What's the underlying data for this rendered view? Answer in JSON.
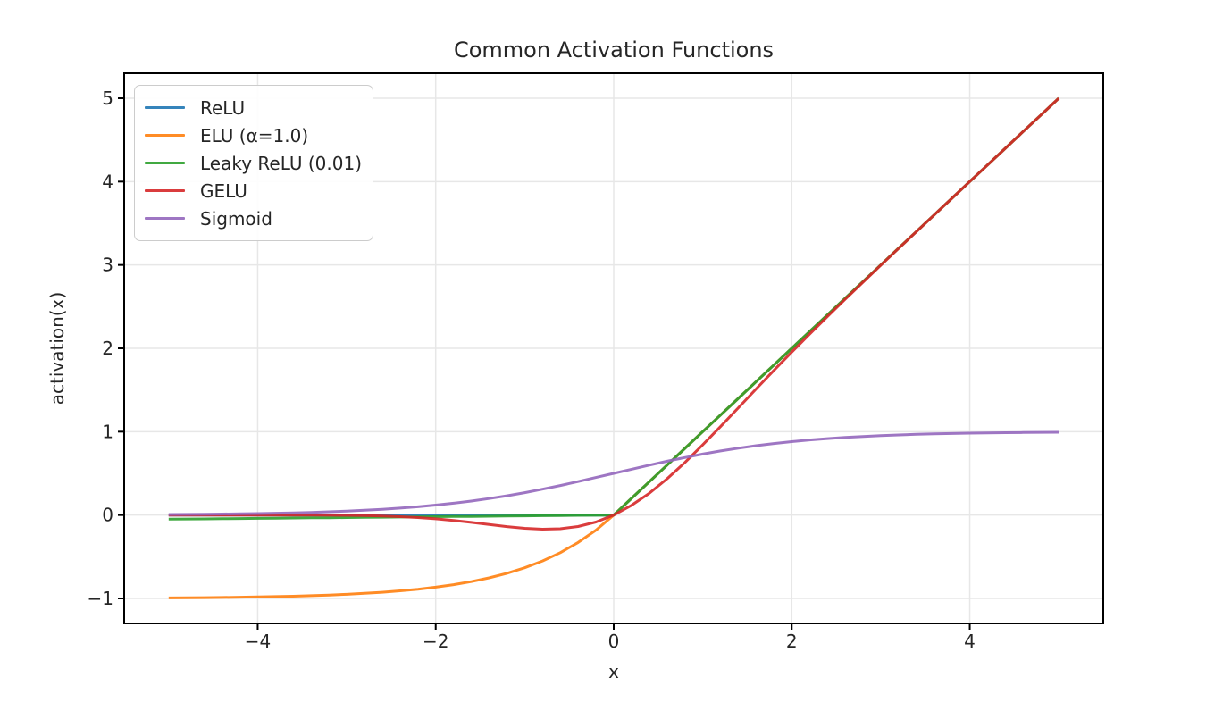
{
  "figure": {
    "background": "#ffffff",
    "text_color": "#262626",
    "spine_color": "#000000",
    "grid_color": "#e7e7e7",
    "legend_border_color": "#cccccc"
  },
  "chart_data": {
    "type": "line",
    "title": "Common Activation Functions",
    "xlabel": "x",
    "ylabel": "activation(x)",
    "xlim": [
      -5.5,
      5.5
    ],
    "ylim": [
      -1.3,
      5.3
    ],
    "grid": true,
    "legend_position": "upper left",
    "line_width": 3,
    "line_alpha": 0.9,
    "xticks": [
      {
        "v": -4,
        "label": "−4"
      },
      {
        "v": -2,
        "label": "−2"
      },
      {
        "v": 0,
        "label": "0"
      },
      {
        "v": 2,
        "label": "2"
      },
      {
        "v": 4,
        "label": "4"
      }
    ],
    "yticks": [
      {
        "v": -1,
        "label": "−1"
      },
      {
        "v": 0,
        "label": "0"
      },
      {
        "v": 1,
        "label": "1"
      },
      {
        "v": 2,
        "label": "2"
      },
      {
        "v": 3,
        "label": "3"
      },
      {
        "v": 4,
        "label": "4"
      },
      {
        "v": 5,
        "label": "5"
      }
    ],
    "x": [
      -5,
      -4.8,
      -4.6,
      -4.4,
      -4.2,
      -4,
      -3.8,
      -3.6,
      -3.4,
      -3.2,
      -3,
      -2.8,
      -2.6,
      -2.4,
      -2.2,
      -2,
      -1.8,
      -1.6,
      -1.4,
      -1.2,
      -1,
      -0.8,
      -0.6,
      -0.4,
      -0.2,
      0,
      0.2,
      0.4,
      0.6,
      0.8,
      1,
      1.2,
      1.4,
      1.6,
      1.8,
      2,
      2.2,
      2.4,
      2.6,
      2.8,
      3,
      3.2,
      3.4,
      3.6,
      3.8,
      4,
      4.2,
      4.4,
      4.6,
      4.8,
      5
    ],
    "series": [
      {
        "name": "ReLU",
        "color": "#1f77b4",
        "values": [
          0,
          0,
          0,
          0,
          0,
          0,
          0,
          0,
          0,
          0,
          0,
          0,
          0,
          0,
          0,
          0,
          0,
          0,
          0,
          0,
          0,
          0,
          0,
          0,
          0,
          0,
          0.2,
          0.4,
          0.6,
          0.8,
          1,
          1.2,
          1.4,
          1.6,
          1.8,
          2,
          2.2,
          2.4,
          2.6,
          2.8,
          3,
          3.2,
          3.4,
          3.6,
          3.8,
          4,
          4.2,
          4.4,
          4.6,
          4.8,
          5
        ]
      },
      {
        "name": "ELU (α=1.0)",
        "color": "#ff7f0e",
        "values": [
          -0.9933,
          -0.9918,
          -0.9899,
          -0.9877,
          -0.985,
          -0.9817,
          -0.9776,
          -0.9727,
          -0.9666,
          -0.9592,
          -0.9502,
          -0.9392,
          -0.9257,
          -0.9093,
          -0.8892,
          -0.8647,
          -0.8347,
          -0.7981,
          -0.7534,
          -0.6988,
          -0.6321,
          -0.5507,
          -0.4512,
          -0.3297,
          -0.1813,
          0,
          0.2,
          0.4,
          0.6,
          0.8,
          1,
          1.2,
          1.4,
          1.6,
          1.8,
          2,
          2.2,
          2.4,
          2.6,
          2.8,
          3,
          3.2,
          3.4,
          3.6,
          3.8,
          4,
          4.2,
          4.4,
          4.6,
          4.8,
          5
        ]
      },
      {
        "name": "Leaky ReLU (0.01)",
        "color": "#2ca02c",
        "values": [
          -0.05,
          -0.048,
          -0.046,
          -0.044,
          -0.042,
          -0.04,
          -0.038,
          -0.036,
          -0.034,
          -0.032,
          -0.03,
          -0.028,
          -0.026,
          -0.024,
          -0.022,
          -0.02,
          -0.018,
          -0.016,
          -0.014,
          -0.012,
          -0.01,
          -0.008,
          -0.006,
          -0.004,
          -0.002,
          0,
          0.2,
          0.4,
          0.6,
          0.8,
          1,
          1.2,
          1.4,
          1.6,
          1.8,
          2,
          2.2,
          2.4,
          2.6,
          2.8,
          3,
          3.2,
          3.4,
          3.6,
          3.8,
          4,
          4.2,
          4.4,
          4.6,
          4.8,
          5
        ]
      },
      {
        "name": "GELU",
        "color": "#d62728",
        "values": [
          0,
          0,
          0,
          0,
          -0.0001,
          -0.0001,
          -0.0003,
          -0.0006,
          -0.0011,
          -0.0022,
          -0.004,
          -0.0072,
          -0.0121,
          -0.0197,
          -0.0306,
          -0.0455,
          -0.0647,
          -0.0877,
          -0.1131,
          -0.1381,
          -0.1587,
          -0.1695,
          -0.1646,
          -0.1378,
          -0.0841,
          0,
          0.1159,
          0.2622,
          0.4354,
          0.6305,
          0.8413,
          1.0619,
          1.2869,
          1.5123,
          1.7353,
          1.9545,
          2.1694,
          2.3803,
          2.5879,
          2.7928,
          2.996,
          3.1978,
          3.3989,
          3.5994,
          3.7997,
          3.9999,
          4.1999,
          4.4,
          4.6,
          4.8,
          5
        ]
      },
      {
        "name": "Sigmoid",
        "color": "#9467bd",
        "values": [
          0.0067,
          0.0082,
          0.01,
          0.0121,
          0.0148,
          0.018,
          0.0219,
          0.0266,
          0.0323,
          0.0392,
          0.0474,
          0.0573,
          0.0691,
          0.0832,
          0.0997,
          0.1192,
          0.1419,
          0.168,
          0.1978,
          0.2315,
          0.2689,
          0.31,
          0.3543,
          0.4013,
          0.4502,
          0.5,
          0.5498,
          0.5987,
          0.6457,
          0.69,
          0.7311,
          0.7685,
          0.8022,
          0.832,
          0.8581,
          0.8808,
          0.9002,
          0.9168,
          0.9309,
          0.9427,
          0.9526,
          0.9608,
          0.9677,
          0.9734,
          0.9781,
          0.982,
          0.9852,
          0.9879,
          0.99,
          0.9918,
          0.9933
        ]
      }
    ]
  }
}
